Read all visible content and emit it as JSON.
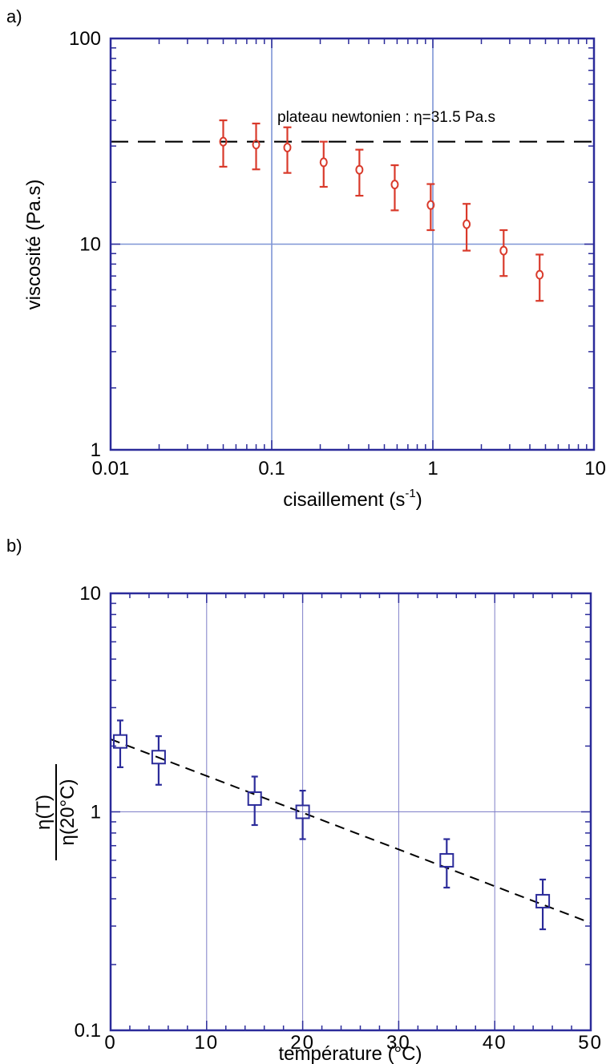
{
  "chart_data": [
    {
      "panel_label": "a)",
      "type": "scatter",
      "xlabel": "cisaillement (s-1)",
      "xlabel_parts": {
        "main": "cisaillement (s",
        "sup": "-1",
        "close": ")"
      },
      "ylabel": "viscosité (Pa.s)",
      "x_scale": "log",
      "y_scale": "log",
      "xlim": [
        0.01,
        10
      ],
      "ylim": [
        1,
        100
      ],
      "x_ticks": [
        "0.01",
        "0.1",
        "1",
        "10"
      ],
      "y_ticks": [
        "1",
        "10",
        "100"
      ],
      "grid": true,
      "series": [
        {
          "x": [
            0.05,
            0.08,
            0.125,
            0.21,
            0.35,
            0.58,
            0.97,
            1.62,
            2.75,
            4.6
          ],
          "y": [
            31.5,
            30.5,
            29.5,
            25,
            23,
            19.5,
            15.5,
            12.5,
            9.3,
            7.1
          ],
          "err_low": [
            23.8,
            23.1,
            22.2,
            19,
            17.2,
            14.6,
            11.7,
            9.3,
            7,
            5.3
          ],
          "err_high": [
            40,
            38.6,
            37,
            31.5,
            28.8,
            24.2,
            19.6,
            15.7,
            11.7,
            8.9
          ],
          "marker": "circle",
          "color": "#d93a2b"
        }
      ],
      "reference_line": {
        "y": 31.5,
        "style": "dashed",
        "color": "#000000"
      },
      "annotation": "plateau newtonien : η=31.5 Pa.s"
    },
    {
      "panel_label": "b)",
      "type": "scatter",
      "xlabel": "température (°C)",
      "ylabel_numerator": "η(T)",
      "ylabel_denominator": "η(20°C)",
      "x_scale": "linear",
      "y_scale": "log",
      "xlim": [
        0,
        50
      ],
      "ylim": [
        0.1,
        10
      ],
      "x_ticks": [
        "0",
        "10",
        "20",
        "30",
        "40",
        "50"
      ],
      "y_ticks": [
        "0.1",
        "1",
        "10"
      ],
      "grid": true,
      "series": [
        {
          "x": [
            1,
            5,
            15,
            20,
            35,
            45
          ],
          "y": [
            2.1,
            1.78,
            1.15,
            1.0,
            0.6,
            0.39
          ],
          "err_low": [
            1.6,
            1.33,
            0.87,
            0.75,
            0.45,
            0.29
          ],
          "err_high": [
            2.62,
            2.22,
            1.45,
            1.25,
            0.75,
            0.49
          ],
          "marker": "square",
          "color": "#2b2b9a"
        }
      ],
      "fit_line": {
        "x": [
          0,
          50
        ],
        "y": [
          2.15,
          0.31
        ],
        "style": "dashed",
        "color": "#000000"
      }
    }
  ]
}
